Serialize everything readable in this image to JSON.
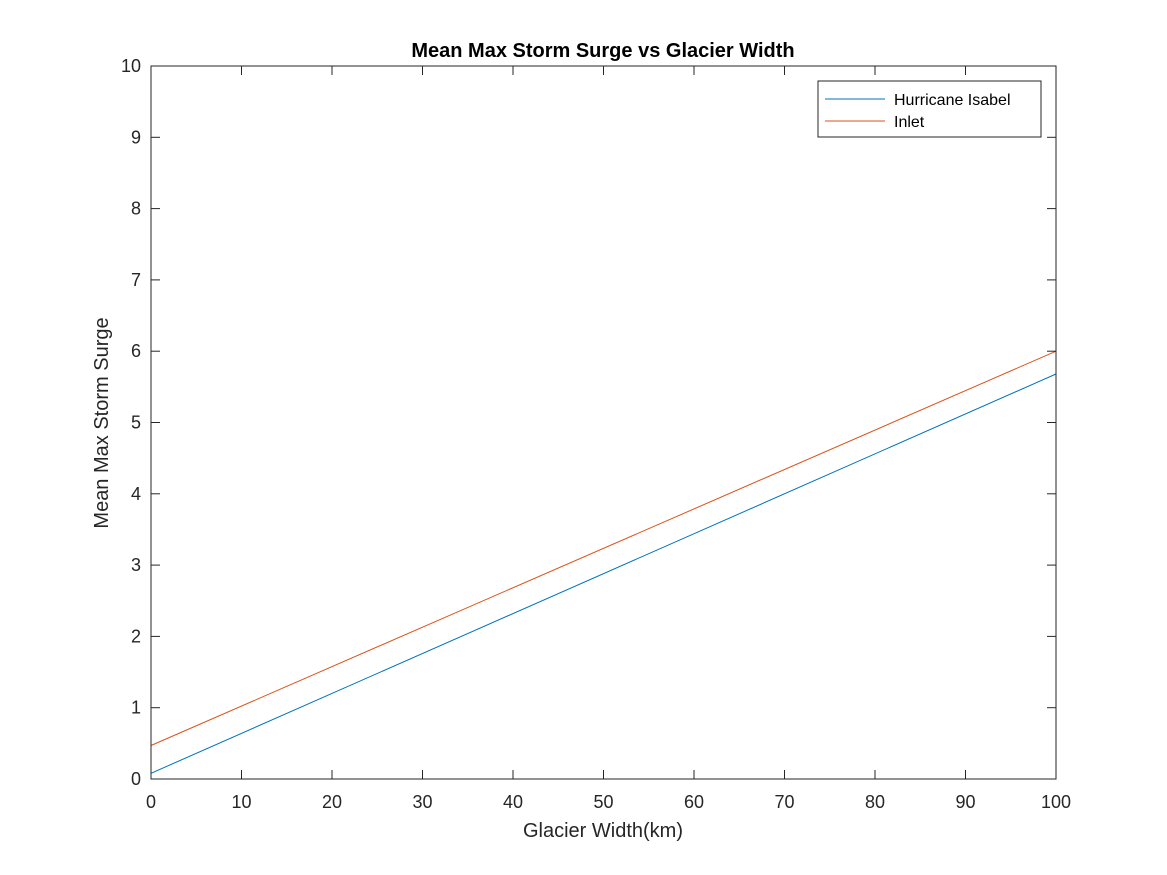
{
  "chart_data": {
    "type": "line",
    "title": "Mean Max Storm Surge vs Glacier Width",
    "xlabel": "Glacier Width(km)",
    "ylabel": "Mean Max Storm Surge",
    "xlim": [
      0,
      100
    ],
    "ylim": [
      0,
      10
    ],
    "xticks": [
      0,
      10,
      20,
      30,
      40,
      50,
      60,
      70,
      80,
      90,
      100
    ],
    "yticks": [
      0,
      1,
      2,
      3,
      4,
      5,
      6,
      7,
      8,
      9,
      10
    ],
    "xtick_labels": [
      "0",
      "10",
      "20",
      "30",
      "40",
      "50",
      "60",
      "70",
      "80",
      "90",
      "100"
    ],
    "ytick_labels": [
      "0",
      "1",
      "2",
      "3",
      "4",
      "5",
      "6",
      "7",
      "8",
      "9",
      "10"
    ],
    "grid": false,
    "legend_position": "top-right",
    "series": [
      {
        "name": "Hurricane Isabel",
        "color": "#0072BD",
        "x": [
          0,
          100
        ],
        "y": [
          0.08,
          5.68
        ]
      },
      {
        "name": "Inlet",
        "color": "#D95319",
        "x": [
          0,
          100
        ],
        "y": [
          0.47,
          6.0
        ]
      }
    ]
  }
}
